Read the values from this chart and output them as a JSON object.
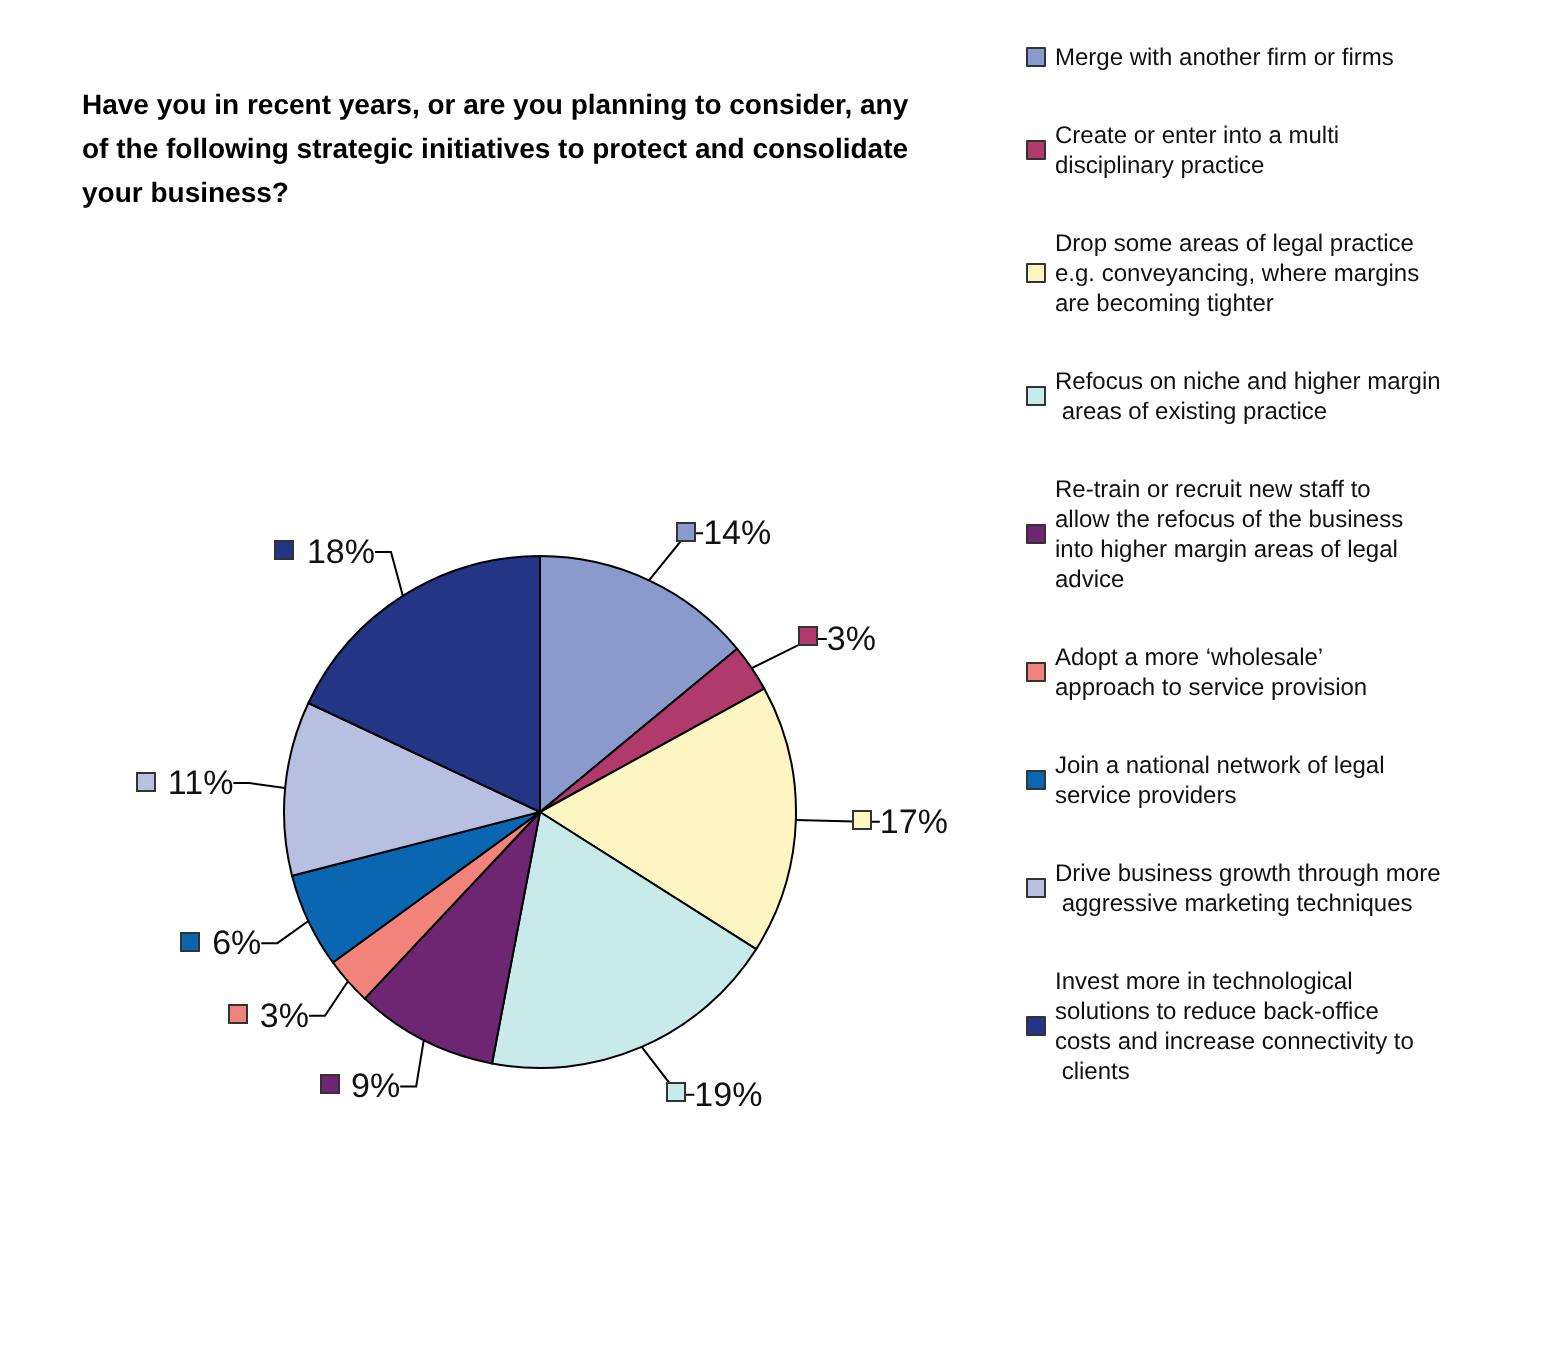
{
  "chart_data": {
    "type": "pie",
    "title": "Have you in recent years, or are you planning to consider, any of the following strategic initiatives to protect and consolidate your business?",
    "categories": [
      "Merge with another firm or firms",
      "Create or enter into a multi disciplinary practice",
      "Drop some areas of legal practice e.g. conveyancing, where margins are becoming tighter",
      "Refocus on niche and higher margin areas of existing practice",
      "Re-train or recruit new staff to allow the refocus of the business into higher margin areas of legal advice",
      "Adopt a more ‘wholesale’ approach to service provision",
      "Join a national network of legal service providers",
      "Drive business growth through more aggressive marketing techniques",
      "Invest more in technological solutions to reduce back-office costs and increase connectivity to clients"
    ],
    "values": [
      14,
      3,
      17,
      19,
      9,
      3,
      6,
      11,
      18
    ],
    "colors": [
      "#8a9acc",
      "#b03a6c",
      "#fdf5c2",
      "#c9eaea",
      "#6e2672",
      "#f2837a",
      "#0a66b0",
      "#b8c0e2",
      "#243585"
    ],
    "value_labels": [
      "14%",
      "3%",
      "17%",
      "19%",
      "9%",
      "3%",
      "6%",
      "11%",
      "18%"
    ],
    "legend": "right"
  }
}
